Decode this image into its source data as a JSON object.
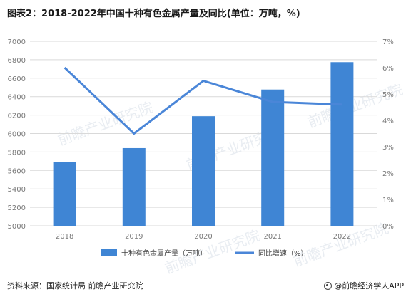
{
  "title": "图表2：2018-2022年中国十种有色金属产量及同比(单位：万吨，%)",
  "source": "资料来源：国家统计局 前瞻产业研究院",
  "brand": "@前瞻经济学人APP",
  "watermark": "前瞻产业研究院",
  "colors": {
    "bar": "#3f85d4",
    "line": "#4a86d8",
    "grid": "#d9d9d9",
    "axis_text": "#7a7a7a"
  },
  "chart_data": {
    "type": "bar+line",
    "categories": [
      "2018",
      "2019",
      "2020",
      "2021",
      "2022"
    ],
    "series": [
      {
        "name": "十种有色金属产量（万吨）",
        "type": "bar",
        "axis": "left",
        "values": [
          5688,
          5842,
          6188,
          6477,
          6774
        ]
      },
      {
        "name": "同比增速（%）",
        "type": "line",
        "axis": "right",
        "values": [
          6.0,
          3.5,
          5.5,
          4.7,
          4.6
        ]
      }
    ],
    "y_left": {
      "min": 5000,
      "max": 7000,
      "step": 200
    },
    "y_right": {
      "min": 0,
      "max": 7,
      "step": 1,
      "suffix": "%"
    },
    "grid": true,
    "legend": "bottom-center"
  }
}
